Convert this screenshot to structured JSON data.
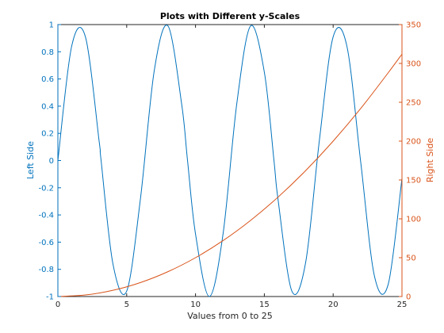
{
  "chart_data": {
    "type": "line",
    "title": "Plots with Different y-Scales",
    "xlabel": "Values from 0 to 25",
    "xlim": [
      0,
      25
    ],
    "xticks": [
      0,
      5,
      10,
      15,
      20,
      25
    ],
    "left_axis": {
      "label": "Left Side",
      "color": "#0072BD",
      "ylim": [
        -1,
        1
      ],
      "ticks": [
        -1,
        -0.8,
        -0.6,
        -0.4,
        -0.2,
        0,
        0.2,
        0.4,
        0.6,
        0.8,
        1
      ],
      "tick_labels": [
        "-1",
        "-0.8",
        "-0.6",
        "-0.4",
        "-0.2",
        "0",
        "0.2",
        "0.4",
        "0.6",
        "0.8",
        "1"
      ]
    },
    "right_axis": {
      "label": "Right Side",
      "color": "#D95319",
      "ylim": [
        0,
        350
      ],
      "ticks": [
        0,
        50,
        100,
        150,
        200,
        250,
        300,
        350
      ],
      "tick_labels": [
        "0",
        "50",
        "100",
        "150",
        "200",
        "250",
        "300",
        "350"
      ]
    },
    "grid": false,
    "series": [
      {
        "axis": "left",
        "color": "#0072BD",
        "x": [
          0,
          1,
          2,
          3,
          3.14,
          4,
          5,
          6,
          7,
          8,
          9,
          9.42,
          10,
          11,
          12,
          13,
          14,
          15,
          15.7,
          16,
          17,
          18,
          19,
          20,
          21,
          22,
          23,
          24,
          25
        ],
        "y": [
          0,
          0.84,
          0.91,
          0.14,
          0.0,
          -0.76,
          -0.96,
          -0.28,
          0.66,
          0.99,
          0.41,
          0.0,
          -0.54,
          -1.0,
          -0.54,
          0.42,
          0.99,
          0.65,
          0.0,
          -0.29,
          -0.96,
          -0.75,
          0.15,
          0.91,
          0.84,
          -0.01,
          -0.85,
          -0.91,
          -0.13
        ]
      },
      {
        "axis": "right",
        "color": "#D95319",
        "x": [
          0,
          2,
          4,
          6,
          8,
          10,
          12,
          14,
          16,
          18,
          20,
          22,
          24,
          25
        ],
        "y": [
          0,
          2,
          8,
          18,
          32,
          50,
          72,
          98,
          128,
          162,
          200,
          242,
          288,
          312
        ]
      }
    ]
  }
}
